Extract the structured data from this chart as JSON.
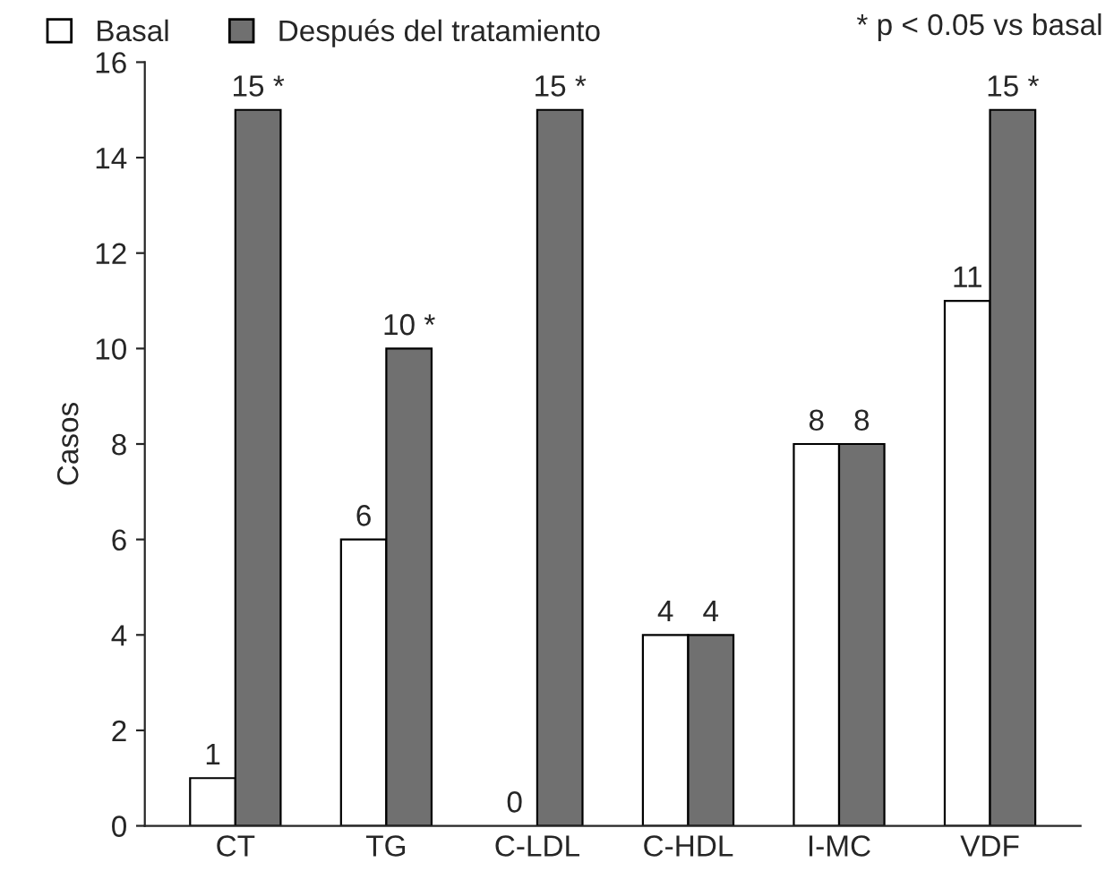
{
  "chart_data": {
    "type": "bar",
    "ylabel": "Casos",
    "categories": [
      "CT",
      "TG",
      "C-LDL",
      "C-HDL",
      "I-MC",
      "VDF"
    ],
    "series": [
      {
        "name": "Basal",
        "color": "#ffffff",
        "values": [
          1,
          6,
          0,
          4,
          8,
          11
        ],
        "value_labels": [
          "1",
          "6",
          "0",
          "4",
          "8",
          "11"
        ]
      },
      {
        "name": "Después del tratamiento",
        "color": "#707070",
        "values": [
          15,
          10,
          15,
          4,
          8,
          15
        ],
        "value_labels": [
          "15 *",
          "10 *",
          "15 *",
          "4",
          "8",
          "15 *"
        ]
      }
    ],
    "ylim": [
      0,
      16
    ],
    "yticks": [
      0,
      2,
      4,
      6,
      8,
      10,
      12,
      14,
      16
    ],
    "legend": "top",
    "grid": false,
    "annotations": [
      "* p < 0.05 vs basal"
    ]
  }
}
